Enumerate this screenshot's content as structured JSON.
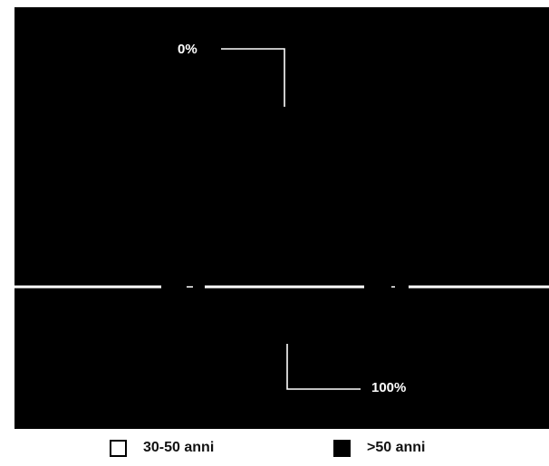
{
  "chart_data": {
    "type": "bar",
    "orientation": "horizontal",
    "stacked": true,
    "categories": [
      "",
      ""
    ],
    "series": [
      {
        "name": "30-50 anni",
        "values": [
          0,
          0
        ],
        "color": "#ffffff"
      },
      {
        "name": ">50 anni",
        "values": [
          100,
          100
        ],
        "color": "#000000"
      }
    ],
    "xlim": [
      0,
      100
    ],
    "annotations": [
      {
        "text": "0%"
      },
      {
        "text": "100%"
      }
    ],
    "grid": false,
    "legend": "bottom",
    "background": "#000000",
    "separator_color": "#ffffff"
  }
}
